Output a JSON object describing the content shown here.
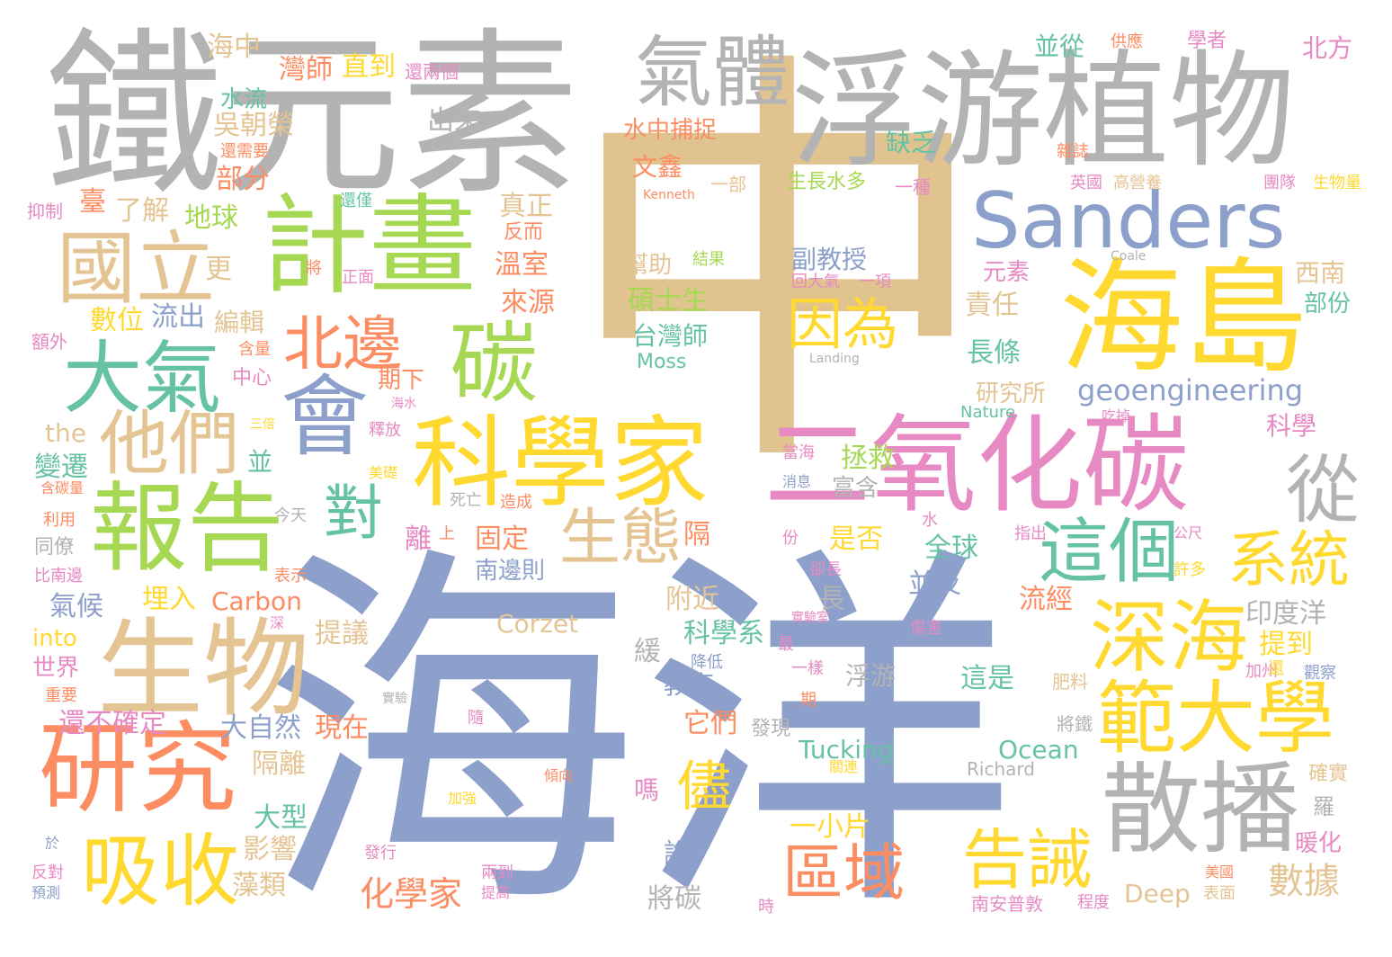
{
  "palette": {
    "gray": "#b3b3b3",
    "tan": "#e0c38f",
    "blue": "#8da0cb",
    "pink": "#e78ac3",
    "green": "#a6d854",
    "orange": "#fc8d62",
    "yellow": "#ffd92f",
    "teal": "#66c2a5",
    "beige": "#e5c494"
  },
  "words": [
    {
      "text": "海洋",
      "color": "blue"
    },
    {
      "text": "中",
      "color": "tan"
    },
    {
      "text": "鐵元素",
      "color": "gray"
    },
    {
      "text": "浮游植物",
      "color": "gray"
    },
    {
      "text": "氣體",
      "color": "gray"
    },
    {
      "text": "Sanders",
      "color": "blue"
    },
    {
      "text": "計畫",
      "color": "green"
    },
    {
      "text": "國立",
      "color": "beige"
    },
    {
      "text": "海島",
      "color": "yellow"
    },
    {
      "text": "二氧化碳",
      "color": "pink"
    },
    {
      "text": "科學家",
      "color": "yellow"
    },
    {
      "text": "會",
      "color": "blue"
    },
    {
      "text": "碳",
      "color": "green"
    },
    {
      "text": "北邊",
      "color": "orange"
    },
    {
      "text": "大氣",
      "color": "teal"
    },
    {
      "text": "他們",
      "color": "beige"
    },
    {
      "text": "報告",
      "color": "green"
    },
    {
      "text": "生物",
      "color": "beige"
    },
    {
      "text": "研究",
      "color": "orange"
    },
    {
      "text": "吸收",
      "color": "yellow"
    },
    {
      "text": "散播",
      "color": "gray"
    },
    {
      "text": "範大學",
      "color": "yellow"
    },
    {
      "text": "深海",
      "color": "yellow"
    },
    {
      "text": "這個",
      "color": "teal"
    },
    {
      "text": "系統",
      "color": "yellow"
    },
    {
      "text": "從",
      "color": "gray"
    },
    {
      "text": "因為",
      "color": "yellow"
    },
    {
      "text": "生態",
      "color": "beige"
    },
    {
      "text": "對",
      "color": "teal"
    },
    {
      "text": "告誡",
      "color": "yellow"
    },
    {
      "text": "區域",
      "color": "orange"
    },
    {
      "text": "儘",
      "color": "yellow"
    },
    {
      "text": "geoengineering",
      "color": "blue"
    },
    {
      "text": "化學家",
      "color": "orange"
    },
    {
      "text": "數據",
      "color": "beige"
    },
    {
      "text": "海中",
      "color": "beige"
    },
    {
      "text": "灣師",
      "color": "orange"
    },
    {
      "text": "直到",
      "color": "yellow"
    },
    {
      "text": "還兩個",
      "color": "pink"
    },
    {
      "text": "並從",
      "color": "teal"
    },
    {
      "text": "供應",
      "color": "orange"
    },
    {
      "text": "學者",
      "color": "pink"
    },
    {
      "text": "北方",
      "color": "pink"
    },
    {
      "text": "水流",
      "color": "teal"
    },
    {
      "text": "出來",
      "color": "gray"
    },
    {
      "text": "吳朝榮",
      "color": "beige"
    },
    {
      "text": "水中捕捉",
      "color": "orange"
    },
    {
      "text": "還需要",
      "color": "orange"
    },
    {
      "text": "缺乏",
      "color": "teal"
    },
    {
      "text": "雜誌",
      "color": "orange"
    },
    {
      "text": "部分",
      "color": "orange"
    },
    {
      "text": "文鑫",
      "color": "orange"
    },
    {
      "text": "抑制",
      "color": "pink"
    },
    {
      "text": "還僅",
      "color": "teal"
    },
    {
      "text": "Kenneth",
      "color": "orange"
    },
    {
      "text": "一部",
      "color": "beige"
    },
    {
      "text": "生長水多",
      "color": "green"
    },
    {
      "text": "一種",
      "color": "pink"
    },
    {
      "text": "英國",
      "color": "pink"
    },
    {
      "text": "高營養",
      "color": "beige"
    },
    {
      "text": "團隊",
      "color": "pink"
    },
    {
      "text": "生物量",
      "color": "yellow"
    },
    {
      "text": "臺",
      "color": "orange"
    },
    {
      "text": "了解",
      "color": "beige"
    },
    {
      "text": "真正",
      "color": "beige"
    },
    {
      "text": "地球",
      "color": "green"
    },
    {
      "text": "反而",
      "color": "orange"
    },
    {
      "text": "更",
      "color": "beige"
    },
    {
      "text": "將",
      "color": "orange"
    },
    {
      "text": "正面",
      "color": "pink"
    },
    {
      "text": "溫室",
      "color": "orange"
    },
    {
      "text": "幫助",
      "color": "beige"
    },
    {
      "text": "結果",
      "color": "green"
    },
    {
      "text": "副教授",
      "color": "blue"
    },
    {
      "text": "Coale",
      "color": "gray"
    },
    {
      "text": "回大氣",
      "color": "pink"
    },
    {
      "text": "一項",
      "color": "pink"
    },
    {
      "text": "元素",
      "color": "pink"
    },
    {
      "text": "西南",
      "color": "beige"
    },
    {
      "text": "部份",
      "color": "teal"
    },
    {
      "text": "數位",
      "color": "yellow"
    },
    {
      "text": "流出",
      "color": "blue"
    },
    {
      "text": "編輯",
      "color": "beige"
    },
    {
      "text": "來源",
      "color": "orange"
    },
    {
      "text": "碩士生",
      "color": "green"
    },
    {
      "text": "責任",
      "color": "beige"
    },
    {
      "text": "額外",
      "color": "pink"
    },
    {
      "text": "含量",
      "color": "orange"
    },
    {
      "text": "台灣師",
      "color": "teal"
    },
    {
      "text": "Moss",
      "color": "teal"
    },
    {
      "text": "Landing",
      "color": "gray"
    },
    {
      "text": "長條",
      "color": "teal"
    },
    {
      "text": "中心",
      "color": "pink"
    },
    {
      "text": "期下",
      "color": "orange"
    },
    {
      "text": "研究所",
      "color": "beige"
    },
    {
      "text": "三倍",
      "color": "yellow"
    },
    {
      "text": "海水",
      "color": "pink"
    },
    {
      "text": "the",
      "color": "beige"
    },
    {
      "text": "釋放",
      "color": "pink"
    },
    {
      "text": "並",
      "color": "teal"
    },
    {
      "text": "Nature",
      "color": "teal"
    },
    {
      "text": "吃掉",
      "color": "pink"
    },
    {
      "text": "科學",
      "color": "pink"
    },
    {
      "text": "變遷",
      "color": "teal"
    },
    {
      "text": "拯救",
      "color": "green"
    },
    {
      "text": "當海",
      "color": "pink"
    },
    {
      "text": "含碳量",
      "color": "orange"
    },
    {
      "text": "美礎",
      "color": "yellow"
    },
    {
      "text": "消息",
      "color": "blue"
    },
    {
      "text": "富含",
      "color": "gray"
    },
    {
      "text": "死亡",
      "color": "gray"
    },
    {
      "text": "造成",
      "color": "orange"
    },
    {
      "text": "利用",
      "color": "orange"
    },
    {
      "text": "今天",
      "color": "gray"
    },
    {
      "text": "水",
      "color": "pink"
    },
    {
      "text": "指出",
      "color": "pink"
    },
    {
      "text": "隔",
      "color": "orange"
    },
    {
      "text": "同僚",
      "color": "gray"
    },
    {
      "text": "離",
      "color": "pink"
    },
    {
      "text": "上",
      "color": "orange"
    },
    {
      "text": "固定",
      "color": "orange"
    },
    {
      "text": "份",
      "color": "pink"
    },
    {
      "text": "是否",
      "color": "yellow"
    },
    {
      "text": "全球",
      "color": "teal"
    },
    {
      "text": "公尺",
      "color": "pink"
    },
    {
      "text": "比南邊",
      "color": "pink"
    },
    {
      "text": "表示",
      "color": "orange"
    },
    {
      "text": "南邊則",
      "color": "blue"
    },
    {
      "text": "卻長",
      "color": "pink"
    },
    {
      "text": "並反",
      "color": "blue"
    },
    {
      "text": "許多",
      "color": "yellow"
    },
    {
      "text": "氣候",
      "color": "blue"
    },
    {
      "text": "埋入",
      "color": "yellow"
    },
    {
      "text": "Carbon",
      "color": "orange"
    },
    {
      "text": "附近",
      "color": "beige"
    },
    {
      "text": "長",
      "color": "gray"
    },
    {
      "text": "流經",
      "color": "orange"
    },
    {
      "text": "印度洋",
      "color": "gray"
    },
    {
      "text": "深",
      "color": "pink"
    },
    {
      "text": "Corzet",
      "color": "beige"
    },
    {
      "text": "實驗室",
      "color": "pink"
    },
    {
      "text": "傷害",
      "color": "pink"
    },
    {
      "text": "into",
      "color": "yellow"
    },
    {
      "text": "提議",
      "color": "beige"
    },
    {
      "text": "科學系",
      "color": "teal"
    },
    {
      "text": "提到",
      "color": "yellow"
    },
    {
      "text": "世界",
      "color": "pink"
    },
    {
      "text": "緩",
      "color": "gray"
    },
    {
      "text": "降低",
      "color": "blue"
    },
    {
      "text": "最",
      "color": "pink"
    },
    {
      "text": "加州",
      "color": "pink"
    },
    {
      "text": "重要",
      "color": "orange"
    },
    {
      "text": "浮游",
      "color": "gray"
    },
    {
      "text": "一樣",
      "color": "pink"
    },
    {
      "text": "這是",
      "color": "teal"
    },
    {
      "text": "肥料",
      "color": "beige"
    },
    {
      "text": "還",
      "color": "yellow"
    },
    {
      "text": "觀察",
      "color": "blue"
    },
    {
      "text": "教育",
      "color": "blue"
    },
    {
      "text": "實驗",
      "color": "gray"
    },
    {
      "text": "期",
      "color": "orange"
    },
    {
      "text": "還不確定",
      "color": "pink"
    },
    {
      "text": "大自然",
      "color": "blue"
    },
    {
      "text": "現在",
      "color": "orange"
    },
    {
      "text": "它們",
      "color": "orange"
    },
    {
      "text": "發現",
      "color": "gray"
    },
    {
      "text": "將鐵",
      "color": "gray"
    },
    {
      "text": "隨",
      "color": "pink"
    },
    {
      "text": "Tucking",
      "color": "teal"
    },
    {
      "text": "Ocean",
      "color": "teal"
    },
    {
      "text": "隔離",
      "color": "beige"
    },
    {
      "text": "關連",
      "color": "yellow"
    },
    {
      "text": "Richard",
      "color": "gray"
    },
    {
      "text": "嗎",
      "color": "pink"
    },
    {
      "text": "傾向",
      "color": "orange"
    },
    {
      "text": "確實",
      "color": "beige"
    },
    {
      "text": "大型",
      "color": "teal"
    },
    {
      "text": "羅",
      "color": "gray"
    },
    {
      "text": "加強",
      "color": "yellow"
    },
    {
      "text": "一小片",
      "color": "yellow"
    },
    {
      "text": "影響",
      "color": "beige"
    },
    {
      "text": "暖化",
      "color": "pink"
    },
    {
      "text": "於",
      "color": "blue"
    },
    {
      "text": "說",
      "color": "blue"
    },
    {
      "text": "發行",
      "color": "pink"
    },
    {
      "text": "反對",
      "color": "pink"
    },
    {
      "text": "兩到",
      "color": "pink"
    },
    {
      "text": "美國",
      "color": "orange"
    },
    {
      "text": "藻類",
      "color": "beige"
    },
    {
      "text": "將碳",
      "color": "gray"
    },
    {
      "text": "Deep",
      "color": "beige"
    },
    {
      "text": "表面",
      "color": "beige"
    },
    {
      "text": "預測",
      "color": "blue"
    },
    {
      "text": "提高",
      "color": "pink"
    },
    {
      "text": "南安普敦",
      "color": "pink"
    },
    {
      "text": "程度",
      "color": "pink"
    },
    {
      "text": "時",
      "color": "pink"
    }
  ]
}
